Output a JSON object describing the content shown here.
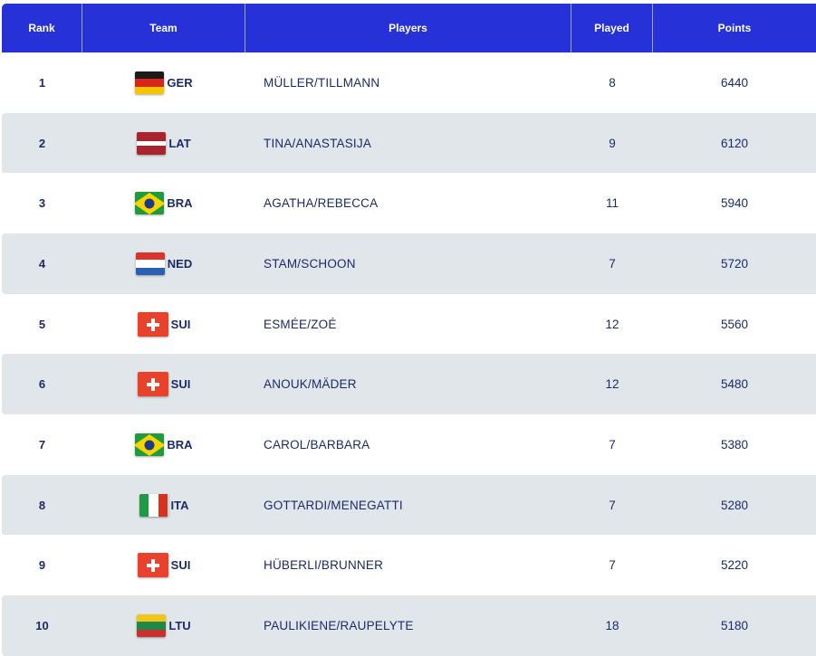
{
  "headers": {
    "rank": "Rank",
    "team": "Team",
    "players": "Players",
    "played": "Played",
    "points": "Points"
  },
  "rows": [
    {
      "rank": "1",
      "flag": "germany-flag-icon",
      "team": "GER",
      "players": "MÜLLER/TILLMANN",
      "played": "8",
      "points": "6440"
    },
    {
      "rank": "2",
      "flag": "latvia-flag-icon",
      "team": "LAT",
      "players": "TINA/ANASTASIJA",
      "played": "9",
      "points": "6120"
    },
    {
      "rank": "3",
      "flag": "brazil-flag-icon",
      "team": "BRA",
      "players": "AGATHA/REBECCA",
      "played": "11",
      "points": "5940"
    },
    {
      "rank": "4",
      "flag": "netherlands-flag-icon",
      "team": "NED",
      "players": "STAM/SCHOON",
      "played": "7",
      "points": "5720"
    },
    {
      "rank": "5",
      "flag": "switzerland-flag-icon",
      "team": "SUI",
      "players": "ESMÉE/ZOÉ",
      "played": "12",
      "points": "5560"
    },
    {
      "rank": "6",
      "flag": "switzerland-flag-icon",
      "team": "SUI",
      "players": "ANOUK/MÄDER",
      "played": "12",
      "points": "5480"
    },
    {
      "rank": "7",
      "flag": "brazil-flag-icon",
      "team": "BRA",
      "players": "CAROL/BARBARA",
      "played": "7",
      "points": "5380"
    },
    {
      "rank": "8",
      "flag": "italy-flag-icon",
      "team": "ITA",
      "players": "GOTTARDI/MENEGATTI",
      "played": "7",
      "points": "5280"
    },
    {
      "rank": "9",
      "flag": "switzerland-flag-icon",
      "team": "SUI",
      "players": "HÜBERLI/BRUNNER",
      "played": "7",
      "points": "5220"
    },
    {
      "rank": "10",
      "flag": "lithuania-flag-icon",
      "team": "LTU",
      "players": "PAULIKIENE/RAUPELYTE",
      "played": "18",
      "points": "5180"
    }
  ],
  "colors": {
    "header_bg": "#2632d8",
    "row_alt_bg": "#e1e6ea",
    "text": "#1b2a6b"
  }
}
